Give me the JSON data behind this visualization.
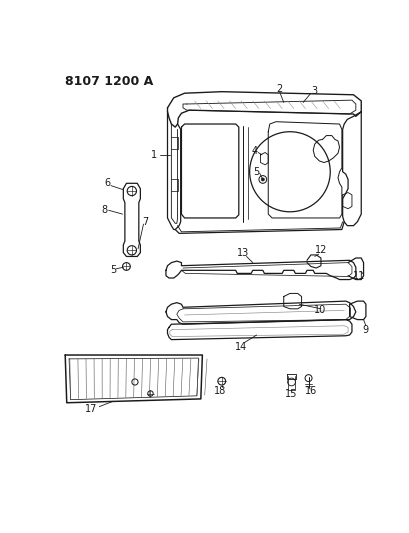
{
  "title": "8107 1200 A",
  "background_color": "#ffffff",
  "line_color": "#1a1a1a",
  "figsize": [
    4.1,
    5.33
  ],
  "dpi": 100,
  "title_fontsize": 9,
  "annotation_fontsize": 7,
  "lw": 0.9
}
